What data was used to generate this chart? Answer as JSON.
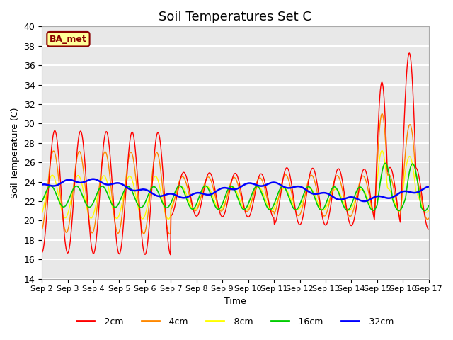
{
  "title": "Soil Temperatures Set C",
  "xlabel": "Time",
  "ylabel": "Soil Temperature (C)",
  "ylim": [
    14,
    40
  ],
  "yticks": [
    14,
    16,
    18,
    20,
    22,
    24,
    26,
    28,
    30,
    32,
    34,
    36,
    38,
    40
  ],
  "xtick_labels": [
    "Sep 2",
    "Sep 3",
    "Sep 4",
    "Sep 5",
    "Sep 6",
    "Sep 7",
    "Sep 8",
    "Sep 9",
    "Sep 10",
    "Sep 11",
    "Sep 12",
    "Sep 13",
    "Sep 14",
    "Sep 15",
    "Sep 16",
    "Sep 17"
  ],
  "colors": {
    "-2cm": "#ff0000",
    "-4cm": "#ff8800",
    "-8cm": "#ffff00",
    "-16cm": "#00cc00",
    "-32cm": "#0000ff"
  },
  "legend_labels": [
    "-2cm",
    "-4cm",
    "-8cm",
    "-16cm",
    "-32cm"
  ],
  "annotation_text": "BA_met",
  "annotation_color": "#8b0000",
  "annotation_bg": "#ffff99",
  "background_color": "#e8e8e8",
  "grid_color": "#ffffff",
  "title_fontsize": 13,
  "axis_fontsize": 9
}
